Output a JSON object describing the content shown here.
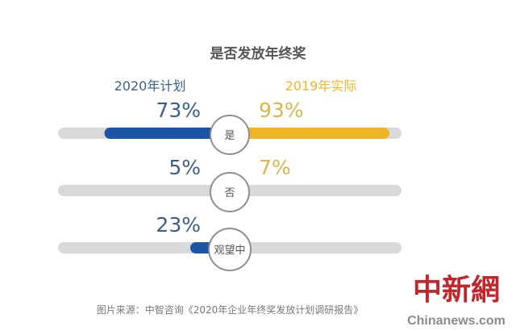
{
  "chart_data": {
    "type": "bar",
    "title": "是否发放年终奖",
    "categories": [
      "是",
      "否",
      "观望中"
    ],
    "series": [
      {
        "name": "2020年计划",
        "values": [
          73,
          5,
          23
        ],
        "labels": [
          "73%",
          "5%",
          "23%"
        ]
      },
      {
        "name": "2019年实际",
        "values": [
          93,
          7,
          null
        ],
        "labels": [
          "93%",
          "7%",
          ""
        ]
      }
    ],
    "unit": "%",
    "xlim": [
      0,
      100
    ],
    "grid": false,
    "legend": "top",
    "colors": {
      "series_2020": "#1b55a3",
      "series_2019": "#f0b429",
      "track": "#d9d9d9",
      "label_2020": "#3a5f86",
      "label_2019": "#d9b54a"
    }
  },
  "source": "图片来源：中智咨询《2020年企业年终奖发放计划调研报告》",
  "watermark": {
    "logo_text": "中新網",
    "site": "Chinanews.com"
  }
}
